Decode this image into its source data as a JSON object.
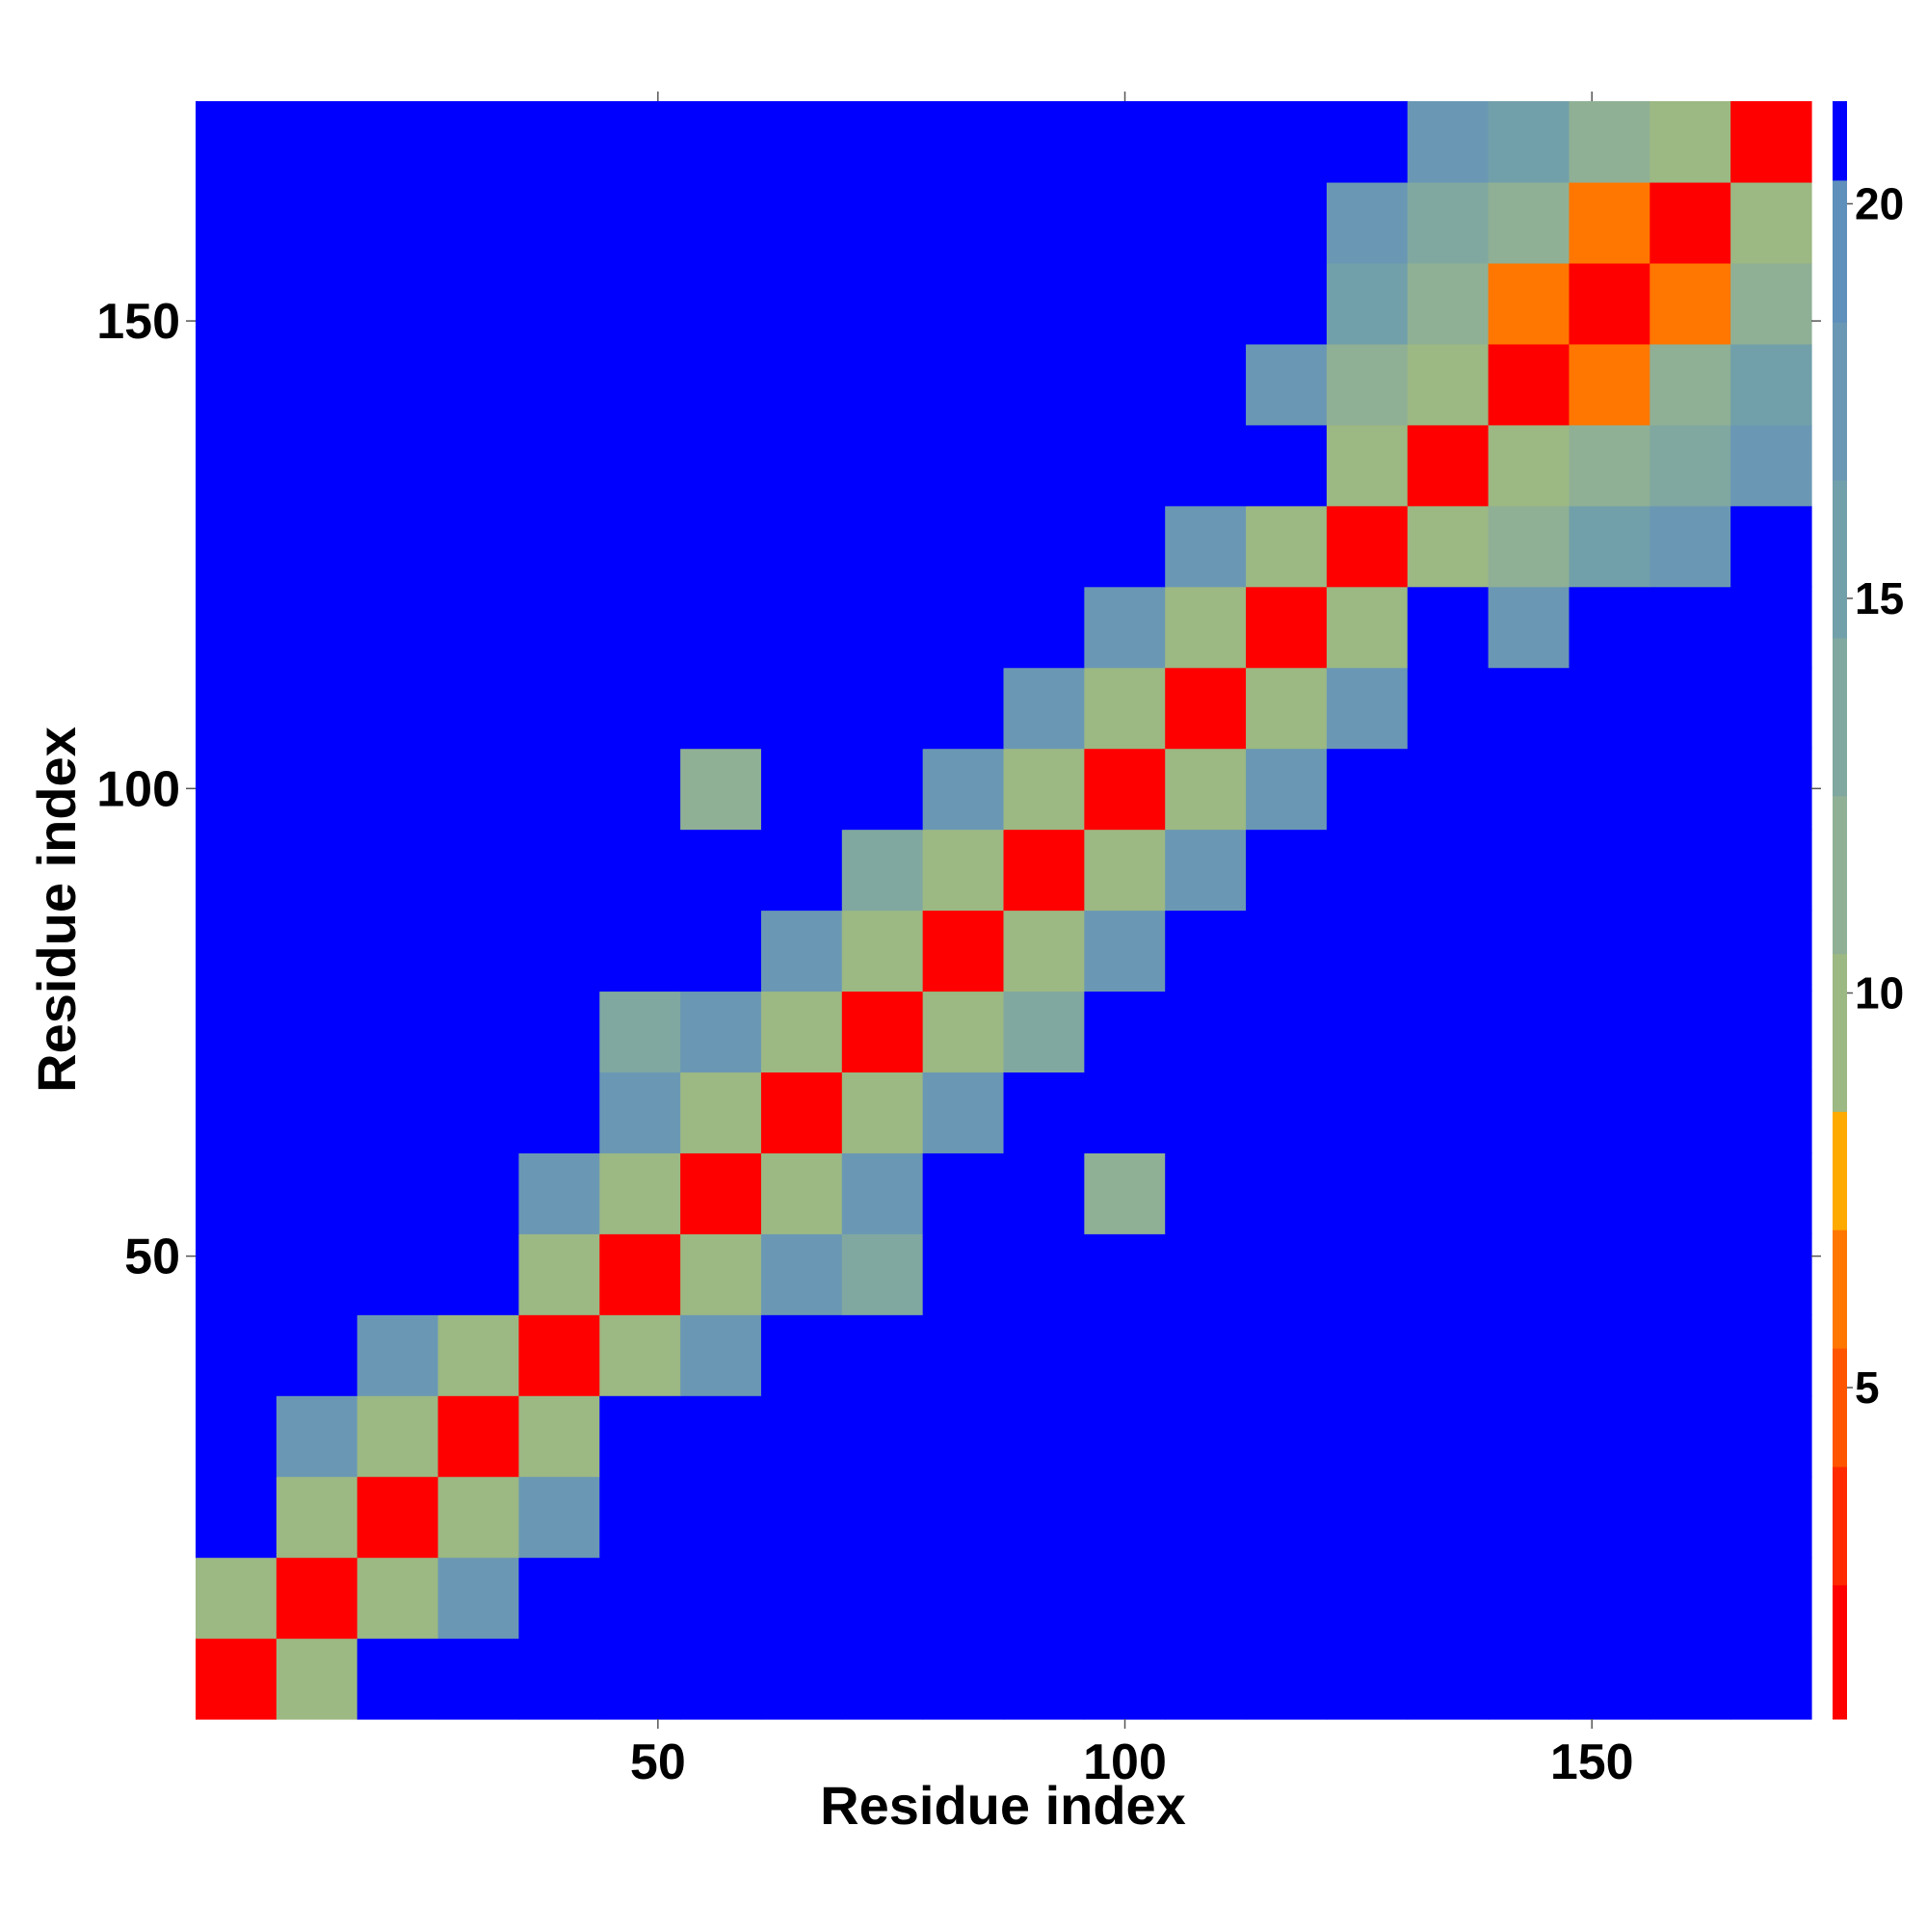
{
  "chart_data": {
    "type": "heatmap",
    "xlabel": "Residue index",
    "ylabel": "Residue index",
    "xlim": [
      0.5,
      173.5
    ],
    "ylim": [
      0.5,
      173.5
    ],
    "xticks": [
      50,
      100,
      150
    ],
    "yticks": [
      50,
      100,
      150
    ],
    "colorbar_lim": [
      0.8,
      21.3
    ],
    "colorbar_ticks": [
      5,
      10,
      15,
      20
    ],
    "levels": [
      0.8,
      2.5,
      4,
      5.5,
      7,
      8.5,
      10.5,
      12.5,
      14.5,
      16.5,
      18.5,
      20.3,
      21.3
    ],
    "colors": [
      "#ff0000",
      "#ff2a00",
      "#ff5500",
      "#ff7700",
      "#ffaa00",
      "#9cb883",
      "#8fb095",
      "#80a8a0",
      "#72a0aa",
      "#6a98b4",
      "#5f90bc",
      "#0000ff"
    ],
    "z": [
      [
        2,
        9,
        21,
        21,
        21,
        21,
        21,
        21,
        21,
        21,
        21,
        21,
        21,
        21,
        21,
        21,
        21,
        21,
        21,
        21
      ],
      [
        9,
        2,
        9,
        17,
        21,
        21,
        21,
        21,
        21,
        21,
        21,
        21,
        21,
        21,
        21,
        21,
        21,
        21,
        21,
        21
      ],
      [
        21,
        9,
        2,
        9,
        17,
        21,
        21,
        21,
        21,
        21,
        21,
        21,
        21,
        21,
        21,
        21,
        21,
        21,
        21,
        21
      ],
      [
        21,
        17,
        9,
        2,
        9,
        21,
        21,
        21,
        21,
        21,
        21,
        21,
        21,
        21,
        21,
        21,
        21,
        21,
        21,
        21
      ],
      [
        21,
        21,
        17,
        9,
        2,
        9,
        17,
        21,
        21,
        21,
        21,
        21,
        21,
        21,
        21,
        21,
        21,
        21,
        21,
        21
      ],
      [
        21,
        21,
        21,
        21,
        9,
        2,
        9,
        17,
        14,
        21,
        21,
        21,
        21,
        21,
        21,
        21,
        21,
        21,
        21,
        21
      ],
      [
        21,
        21,
        21,
        21,
        17,
        9,
        2,
        9,
        17,
        21,
        21,
        12,
        21,
        21,
        21,
        21,
        21,
        21,
        21,
        21
      ],
      [
        21,
        21,
        21,
        21,
        21,
        17,
        9,
        2,
        9,
        17,
        21,
        21,
        21,
        21,
        21,
        21,
        21,
        21,
        21,
        21
      ],
      [
        21,
        21,
        21,
        21,
        21,
        14,
        17,
        9,
        2,
        9,
        13,
        21,
        21,
        21,
        21,
        21,
        21,
        21,
        21,
        21
      ],
      [
        21,
        21,
        21,
        21,
        21,
        21,
        21,
        17,
        9,
        2,
        9,
        17,
        21,
        21,
        21,
        21,
        21,
        21,
        21,
        21
      ],
      [
        21,
        21,
        21,
        21,
        21,
        21,
        21,
        21,
        13,
        9,
        2,
        9,
        17,
        21,
        21,
        21,
        21,
        21,
        21,
        21
      ],
      [
        21,
        21,
        21,
        21,
        21,
        21,
        12,
        21,
        21,
        17,
        9,
        2,
        9,
        17,
        21,
        21,
        21,
        21,
        21,
        21
      ],
      [
        21,
        21,
        21,
        21,
        21,
        21,
        21,
        21,
        21,
        21,
        17,
        9,
        2,
        9,
        17,
        21,
        21,
        21,
        21,
        21
      ],
      [
        21,
        21,
        21,
        21,
        21,
        21,
        21,
        21,
        21,
        21,
        21,
        17,
        9,
        2,
        9,
        21,
        17,
        21,
        21,
        21
      ],
      [
        21,
        21,
        21,
        21,
        21,
        21,
        21,
        21,
        21,
        21,
        21,
        21,
        17,
        9,
        2,
        9,
        12,
        15,
        17,
        21
      ],
      [
        21,
        21,
        21,
        21,
        21,
        21,
        21,
        21,
        21,
        21,
        21,
        21,
        21,
        21,
        9,
        2,
        9,
        12,
        14,
        17
      ],
      [
        21,
        21,
        21,
        21,
        21,
        21,
        21,
        21,
        21,
        21,
        21,
        21,
        21,
        17,
        12,
        9,
        2,
        7,
        12,
        15
      ],
      [
        21,
        21,
        21,
        21,
        21,
        21,
        21,
        21,
        21,
        21,
        21,
        21,
        21,
        21,
        15,
        12,
        7,
        2,
        7,
        12
      ],
      [
        21,
        21,
        21,
        21,
        21,
        21,
        21,
        21,
        21,
        21,
        21,
        21,
        21,
        21,
        17,
        14,
        12,
        7,
        2,
        9
      ],
      [
        21,
        21,
        21,
        21,
        21,
        21,
        21,
        21,
        21,
        21,
        21,
        21,
        21,
        21,
        21,
        17,
        15,
        12,
        9,
        2
      ]
    ]
  }
}
